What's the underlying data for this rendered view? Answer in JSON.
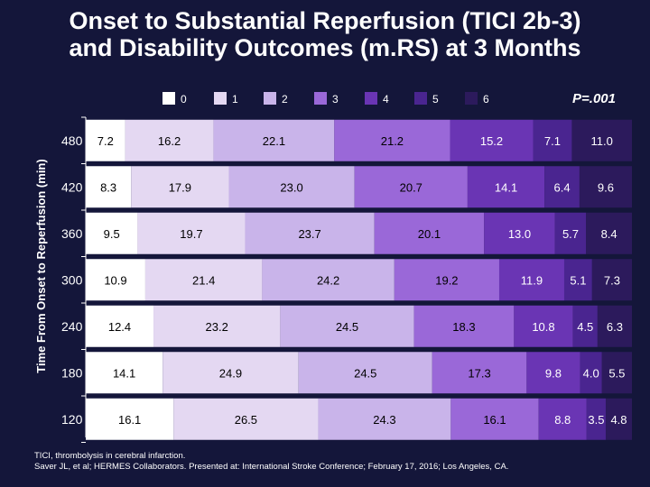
{
  "chart_data": {
    "type": "bar",
    "orientation": "horizontal",
    "stacked": true,
    "normalized": true,
    "title_line1": "Onset to Substantial Reperfusion (TICI 2b-3)",
    "title_line2": "and Disability Outcomes (m.RS) at 3 Months",
    "ylabel": "Time From Onset to Reperfusion (min)",
    "legend": [
      "0",
      "1",
      "2",
      "3",
      "4",
      "5",
      "6"
    ],
    "legend_position": "top",
    "p_value": "P=.001",
    "categories": [
      "480",
      "420",
      "360",
      "300",
      "240",
      "180",
      "120"
    ],
    "series": [
      {
        "name": "0",
        "values": [
          7.2,
          8.3,
          9.5,
          10.9,
          12.4,
          14.1,
          16.1
        ]
      },
      {
        "name": "1",
        "values": [
          16.2,
          17.9,
          19.7,
          21.4,
          23.2,
          24.9,
          26.5
        ]
      },
      {
        "name": "2",
        "values": [
          22.1,
          23.0,
          23.7,
          24.2,
          24.5,
          24.5,
          24.3
        ]
      },
      {
        "name": "3",
        "values": [
          21.2,
          20.7,
          20.1,
          19.2,
          18.3,
          17.3,
          16.1
        ]
      },
      {
        "name": "4",
        "values": [
          15.2,
          14.1,
          13.0,
          11.9,
          10.8,
          9.8,
          8.8
        ]
      },
      {
        "name": "5",
        "values": [
          7.1,
          6.4,
          5.7,
          5.1,
          4.5,
          4.0,
          3.5
        ]
      },
      {
        "name": "6",
        "values": [
          11.0,
          9.6,
          8.4,
          7.3,
          6.3,
          5.5,
          4.8
        ]
      }
    ],
    "colors": [
      "#ffffff",
      "#e4d8f2",
      "#c9b4ea",
      "#9a68d8",
      "#6a35b4",
      "#4a2590",
      "#2c1a5c"
    ],
    "label_colors": [
      "#000000",
      "#000000",
      "#000000",
      "#000000",
      "#ffffff",
      "#ffffff",
      "#ffffff"
    ]
  },
  "footnote": {
    "line1": "TICI, thrombolysis in cerebral infarction.",
    "line2": "Saver JL, et al; HERMES Collaborators. Presented at: International Stroke Conference; February 17, 2016; Los Angeles, CA."
  }
}
